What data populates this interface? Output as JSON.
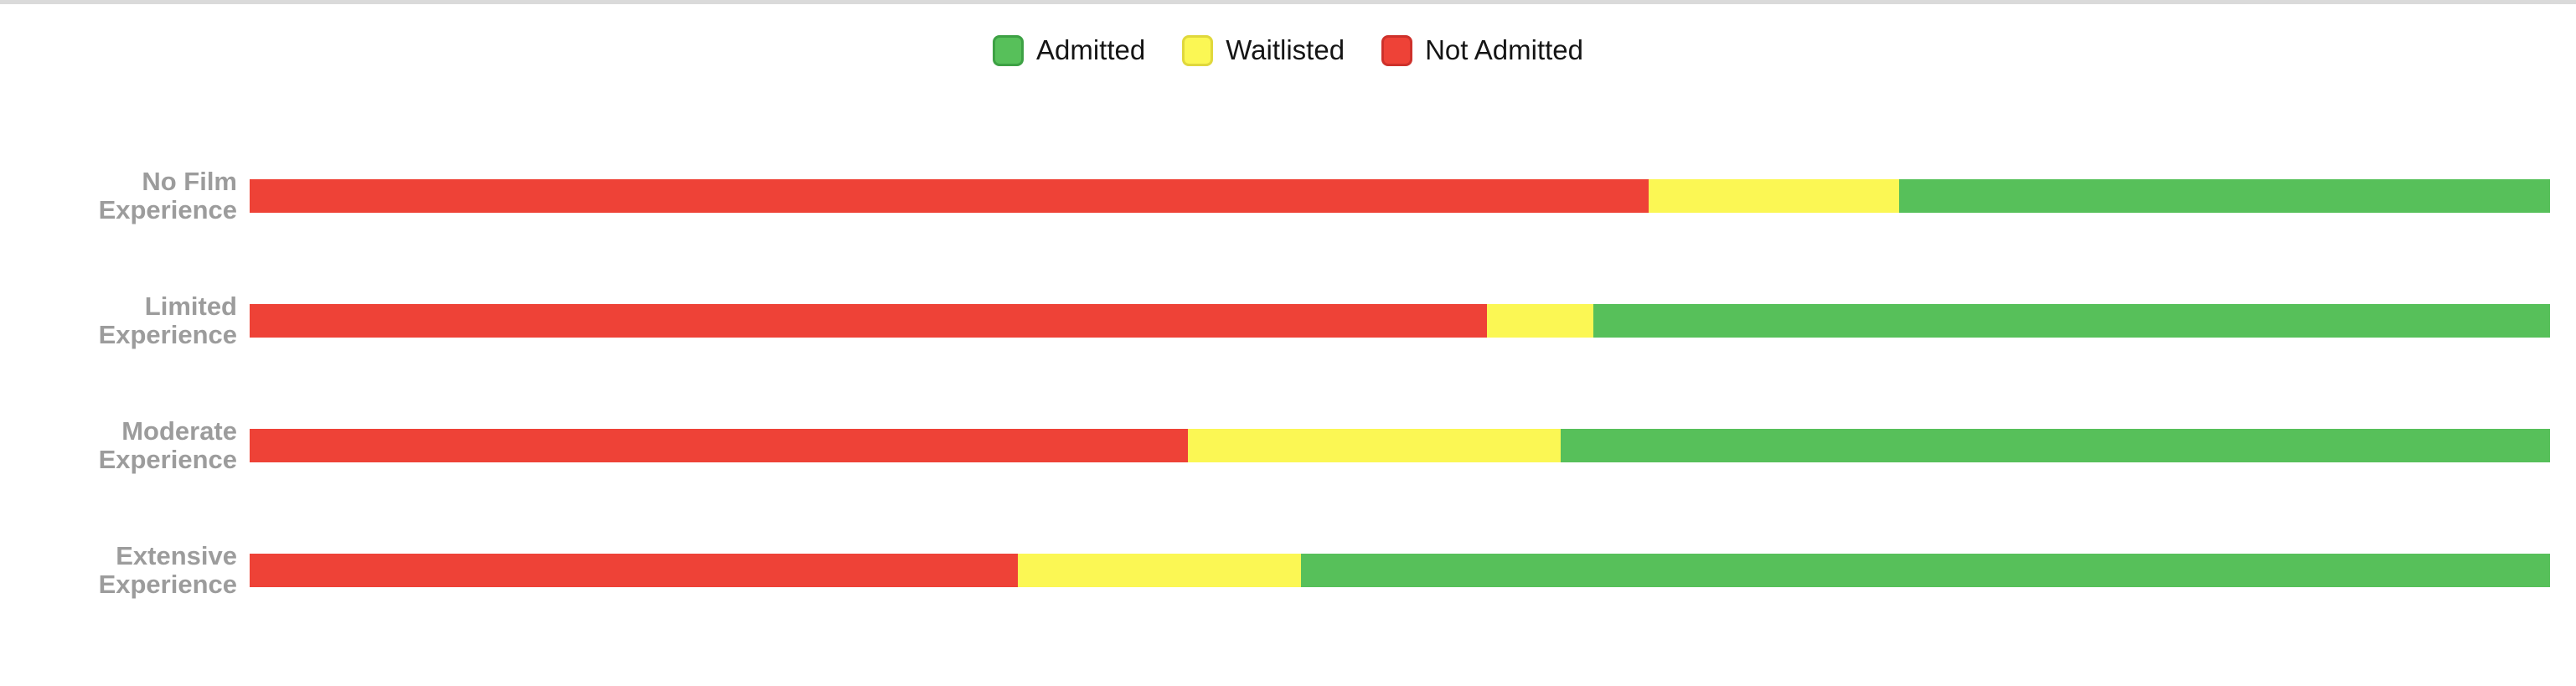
{
  "chart_data": {
    "type": "bar",
    "orientation": "horizontal",
    "stacked": true,
    "normalized": true,
    "unit": "percent",
    "title": "",
    "xlabel": "",
    "ylabel": "",
    "xlim": [
      0,
      100
    ],
    "grid": false,
    "legend_position": "top",
    "categories": [
      "No Film Experience",
      "Limited Experience",
      "Moderate\nExperience",
      "Extensive\nExperience"
    ],
    "series": [
      {
        "name": "Admitted",
        "color": "#57c05a",
        "border_color": "#3da144",
        "values": [
          28.3,
          41.6,
          43.0,
          54.3
        ]
      },
      {
        "name": "Waitlisted",
        "color": "#fbf754",
        "border_color": "#e0d83c",
        "values": [
          10.9,
          4.6,
          16.2,
          12.3
        ]
      },
      {
        "name": "Not Admitted",
        "color": "#ee4237",
        "border_color": "#ce312b",
        "values": [
          60.8,
          53.8,
          40.8,
          33.4
        ]
      }
    ],
    "segment_order_left_to_right": [
      "Not Admitted",
      "Waitlisted",
      "Admitted"
    ],
    "styles": {
      "category_label_color": "#9c9c9c",
      "legend_text_color": "#151515",
      "top_rule_color": "#dadada"
    }
  }
}
